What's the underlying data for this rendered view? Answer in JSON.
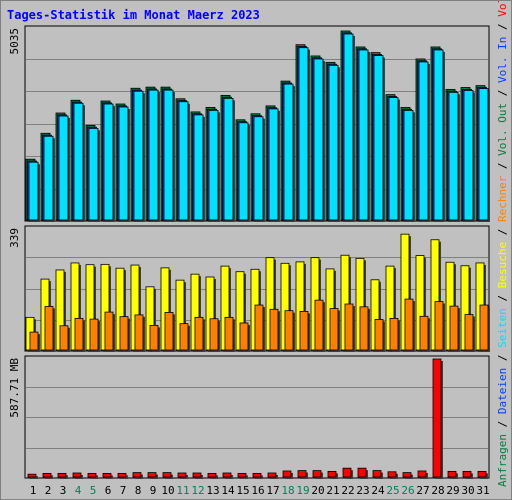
{
  "title": "Tages-Statistik im Monat Maerz 2023",
  "colors": {
    "background": "#c0c0c0",
    "title": "#0000ff",
    "hits": "#008040",
    "files": "#0040ff",
    "pages": "#00e0ff",
    "visits": "#ffff00",
    "sites": "#ff8000",
    "volume": "#ff0000",
    "weekend": "#00805c",
    "grid": "#808080"
  },
  "right_label": [
    {
      "text": "Anfragen",
      "color": "#008040"
    },
    {
      "text": " / ",
      "color": "#000000"
    },
    {
      "text": "Dateien",
      "color": "#0040ff"
    },
    {
      "text": " / ",
      "color": "#000000"
    },
    {
      "text": "Seiten",
      "color": "#00e0ff"
    },
    {
      "text": " / ",
      "color": "#000000"
    },
    {
      "text": "Besuche",
      "color": "#ffff00"
    },
    {
      "text": " / ",
      "color": "#000000"
    },
    {
      "text": "Rechner",
      "color": "#ff8000"
    },
    {
      "text": " / ",
      "color": "#000000"
    },
    {
      "text": "Vol. Out",
      "color": "#008040"
    },
    {
      "text": " / ",
      "color": "#000000"
    },
    {
      "text": "Vol. In",
      "color": "#0040ff"
    },
    {
      "text": " / ",
      "color": "#000000"
    },
    {
      "text": "Volumen",
      "color": "#ff0000"
    }
  ],
  "chart_data": [
    {
      "type": "bar",
      "ymax_label": "5035",
      "ylim": [
        0,
        5035
      ],
      "grid": true,
      "categories": [
        "1",
        "2",
        "3",
        "4",
        "5",
        "6",
        "7",
        "8",
        "9",
        "10",
        "11",
        "12",
        "13",
        "14",
        "15",
        "16",
        "17",
        "18",
        "19",
        "20",
        "21",
        "22",
        "23",
        "24",
        "25",
        "26",
        "27",
        "28",
        "29",
        "30",
        "31"
      ],
      "weekend_categories": [
        "4",
        "5",
        "11",
        "12",
        "18",
        "19",
        "25",
        "26"
      ],
      "series": [
        {
          "name": "Anfragen",
          "values": [
            1620,
            2310,
            2850,
            3190,
            2520,
            3170,
            3090,
            3510,
            3540,
            3540,
            3230,
            2880,
            3000,
            3320,
            2670,
            2830,
            3040,
            3700,
            4670,
            4370,
            4200,
            5035,
            4610,
            4460,
            3340,
            3000,
            4290,
            4610,
            3480,
            3530,
            3580
          ]
        },
        {
          "name": "Dateien",
          "values": [
            1570,
            2260,
            2800,
            3140,
            2470,
            3120,
            3040,
            3460,
            3490,
            3490,
            3180,
            2830,
            2950,
            3270,
            2620,
            2780,
            2990,
            3650,
            4620,
            4320,
            4150,
            4985,
            4560,
            4410,
            3290,
            2950,
            4240,
            4560,
            3430,
            3480,
            3530
          ]
        },
        {
          "name": "Seiten",
          "values": [
            1540,
            2230,
            2770,
            3110,
            2440,
            3090,
            3010,
            3430,
            3460,
            3460,
            3150,
            2800,
            2920,
            3240,
            2590,
            2750,
            2960,
            3620,
            4590,
            4290,
            4120,
            4955,
            4530,
            4380,
            3260,
            2920,
            4210,
            4530,
            3400,
            3450,
            3500
          ]
        }
      ]
    },
    {
      "type": "bar",
      "ymax_label": "339",
      "ylim": [
        0,
        339
      ],
      "grid": true,
      "categories": [
        "1",
        "2",
        "3",
        "4",
        "5",
        "6",
        "7",
        "8",
        "9",
        "10",
        "11",
        "12",
        "13",
        "14",
        "15",
        "16",
        "17",
        "18",
        "19",
        "20",
        "21",
        "22",
        "23",
        "24",
        "25",
        "26",
        "27",
        "28",
        "29",
        "30",
        "31"
      ],
      "series": [
        {
          "name": "Besuche",
          "values": [
            93,
            202,
            228,
            248,
            243,
            244,
            233,
            242,
            180,
            234,
            199,
            216,
            208,
            239,
            223,
            230,
            263,
            247,
            251,
            263,
            231,
            270,
            261,
            200,
            239,
            330,
            269,
            314,
            250,
            240,
            248
          ]
        },
        {
          "name": "Rechner",
          "values": [
            51,
            124,
            69,
            90,
            88,
            108,
            95,
            100,
            70,
            107,
            75,
            93,
            89,
            93,
            77,
            128,
            116,
            112,
            110,
            142,
            118,
            131,
            123,
            87,
            90,
            145,
            96,
            138,
            125,
            101,
            128
          ]
        }
      ]
    },
    {
      "type": "bar",
      "ymax_label": "587.71 MB",
      "ylim": [
        0,
        587.71
      ],
      "grid": true,
      "categories": [
        "1",
        "2",
        "3",
        "4",
        "5",
        "6",
        "7",
        "8",
        "9",
        "10",
        "11",
        "12",
        "13",
        "14",
        "15",
        "16",
        "17",
        "18",
        "19",
        "20",
        "21",
        "22",
        "23",
        "24",
        "25",
        "26",
        "27",
        "28",
        "29",
        "30",
        "31"
      ],
      "series": [
        {
          "name": "Volumen",
          "values": [
            14,
            18,
            18,
            20,
            18,
            18,
            18,
            22,
            22,
            22,
            20,
            20,
            18,
            20,
            18,
            18,
            20,
            30,
            32,
            32,
            28,
            44,
            44,
            32,
            26,
            22,
            30,
            587.71,
            28,
            28,
            28
          ]
        }
      ]
    }
  ]
}
